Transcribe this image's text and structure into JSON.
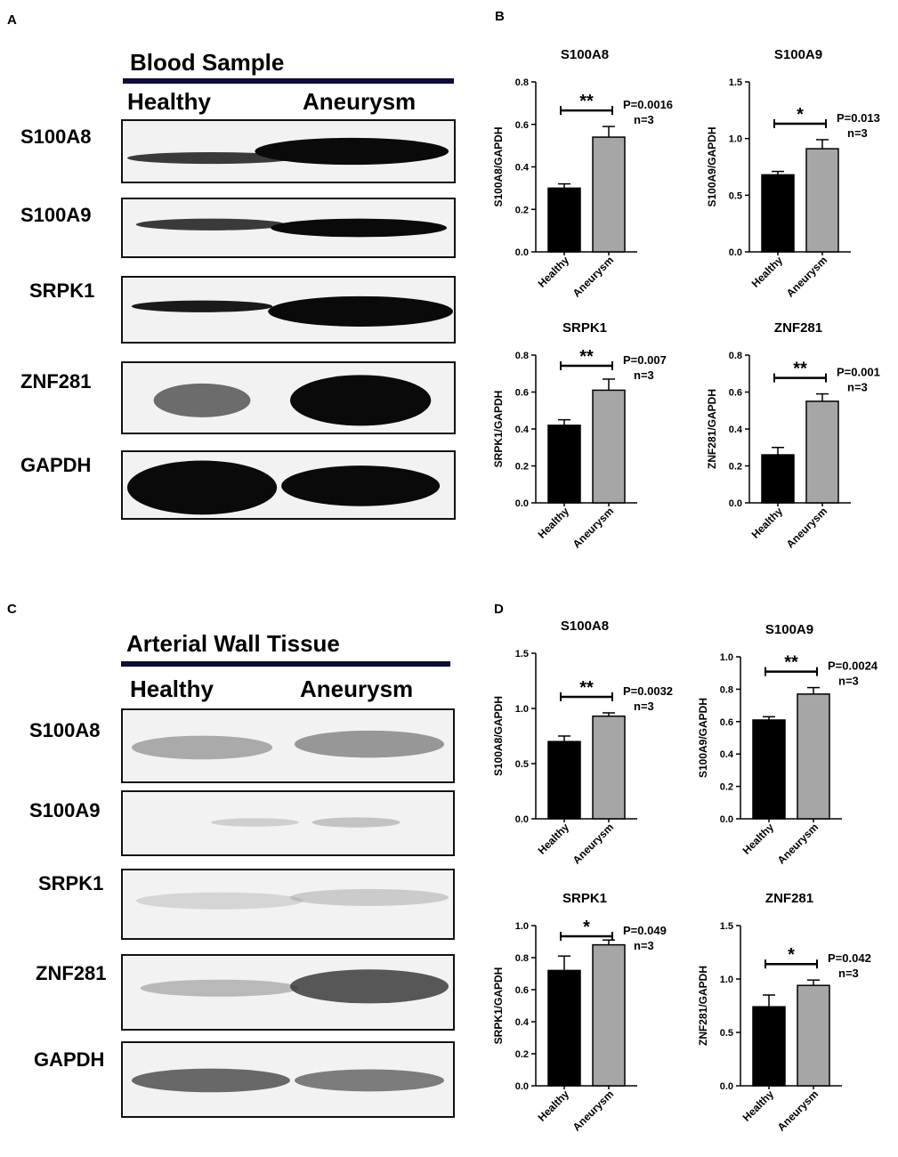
{
  "panels": {
    "A": {
      "letter": "A",
      "title": "Blood Sample",
      "columns": [
        "Healthy",
        "Aneurysm"
      ],
      "rows": [
        "S100A8",
        "S100A9",
        "SRPK1",
        "ZNF281",
        "GAPDH"
      ]
    },
    "B": {
      "letter": "B"
    },
    "C": {
      "letter": "C",
      "title": "Arterial Wall Tissue",
      "columns": [
        "Healthy",
        "Aneurysm"
      ],
      "rows": [
        "S100A8",
        "S100A9",
        "SRPK1",
        "ZNF281",
        "GAPDH"
      ]
    },
    "D": {
      "letter": "D"
    }
  },
  "chart_data": [
    {
      "panel": "B",
      "type": "bar",
      "title": "S100A8",
      "ylabel": "S100A8/GAPDH",
      "categories": [
        "Healthy",
        "Aneurysm"
      ],
      "values": [
        0.3,
        0.54
      ],
      "errors": [
        0.02,
        0.05
      ],
      "ylim": [
        0,
        0.8
      ],
      "yticks": [
        "0.0",
        "0.2",
        "0.4",
        "0.6",
        "0.8"
      ],
      "significance": "**",
      "p_value": "P=0.0016",
      "n": "n=3",
      "colors": [
        "#000000",
        "#a6a6a6"
      ]
    },
    {
      "panel": "B",
      "type": "bar",
      "title": "S100A9",
      "ylabel": "S100A9/GAPDH",
      "categories": [
        "Healthy",
        "Aneurysm"
      ],
      "values": [
        0.68,
        0.91
      ],
      "errors": [
        0.03,
        0.08
      ],
      "ylim": [
        0,
        1.5
      ],
      "yticks": [
        "0.0",
        "0.5",
        "1.0",
        "1.5"
      ],
      "significance": "*",
      "p_value": "P=0.013",
      "n": "n=3",
      "colors": [
        "#000000",
        "#a6a6a6"
      ]
    },
    {
      "panel": "B",
      "type": "bar",
      "title": "SRPK1",
      "ylabel": "SRPK1/GAPDH",
      "categories": [
        "Healthy",
        "Aneurysm"
      ],
      "values": [
        0.42,
        0.61
      ],
      "errors": [
        0.03,
        0.06
      ],
      "ylim": [
        0,
        0.8
      ],
      "yticks": [
        "0.0",
        "0.2",
        "0.4",
        "0.6",
        "0.8"
      ],
      "significance": "**",
      "p_value": "P=0.007",
      "n": "n=3",
      "colors": [
        "#000000",
        "#a6a6a6"
      ]
    },
    {
      "panel": "B",
      "type": "bar",
      "title": "ZNF281",
      "ylabel": "ZNF281/GAPDH",
      "categories": [
        "Healthy",
        "Aneurysm"
      ],
      "values": [
        0.26,
        0.55
      ],
      "errors": [
        0.04,
        0.04
      ],
      "ylim": [
        0,
        0.8
      ],
      "yticks": [
        "0.0",
        "0.2",
        "0.4",
        "0.6",
        "0.8"
      ],
      "significance": "**",
      "p_value": "P=0.001",
      "n": "n=3",
      "colors": [
        "#000000",
        "#a6a6a6"
      ]
    },
    {
      "panel": "D",
      "type": "bar",
      "title": "S100A8",
      "ylabel": "S100A8/GAPDH",
      "categories": [
        "Healthy",
        "Aneurysm"
      ],
      "values": [
        0.7,
        0.93
      ],
      "errors": [
        0.05,
        0.03
      ],
      "ylim": [
        0,
        1.5
      ],
      "yticks": [
        "0.0",
        "0.5",
        "1.0",
        "1.5"
      ],
      "significance": "**",
      "p_value": "P=0.0032",
      "n": "n=3",
      "colors": [
        "#000000",
        "#a6a6a6"
      ]
    },
    {
      "panel": "D",
      "type": "bar",
      "title": "S100A9",
      "ylabel": "S100A9/GAPDH",
      "categories": [
        "Healthy",
        "Aneurysm"
      ],
      "values": [
        0.61,
        0.77
      ],
      "errors": [
        0.02,
        0.04
      ],
      "ylim": [
        0,
        1.0
      ],
      "yticks": [
        "0.0",
        "0.2",
        "0.4",
        "0.6",
        "0.8",
        "1.0"
      ],
      "significance": "**",
      "p_value": "P=0.0024",
      "n": "n=3",
      "colors": [
        "#000000",
        "#a6a6a6"
      ]
    },
    {
      "panel": "D",
      "type": "bar",
      "title": "SRPK1",
      "ylabel": "SRPK1/GAPDH",
      "categories": [
        "Healthy",
        "Aneurysm"
      ],
      "values": [
        0.72,
        0.88
      ],
      "errors": [
        0.09,
        0.03
      ],
      "ylim": [
        0,
        1.0
      ],
      "yticks": [
        "0.0",
        "0.2",
        "0.4",
        "0.6",
        "0.8",
        "1.0"
      ],
      "significance": "*",
      "p_value": "P=0.049",
      "n": "n=3",
      "colors": [
        "#000000",
        "#a6a6a6"
      ]
    },
    {
      "panel": "D",
      "type": "bar",
      "title": "ZNF281",
      "ylabel": "ZNF281/GAPDH",
      "categories": [
        "Healthy",
        "Aneurysm"
      ],
      "values": [
        0.74,
        0.94
      ],
      "errors": [
        0.11,
        0.05
      ],
      "ylim": [
        0,
        1.5
      ],
      "yticks": [
        "0.0",
        "0.5",
        "1.0",
        "1.5"
      ],
      "significance": "*",
      "p_value": "P=0.042",
      "n": "n=3",
      "colors": [
        "#000000",
        "#a6a6a6"
      ]
    }
  ]
}
